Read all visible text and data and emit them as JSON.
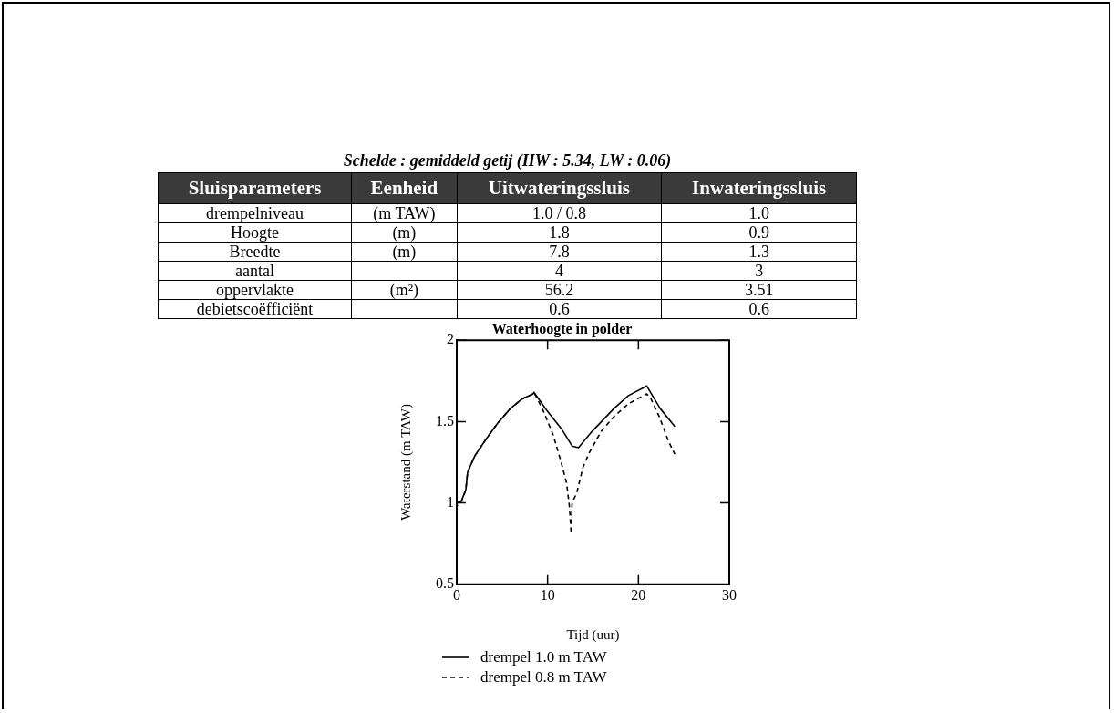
{
  "chart_data": [
    {
      "type": "other",
      "title": "Schelde : gemiddeld getij (HW : 5.34, LW : 0.06)",
      "categories": [
        "Sluisparameters",
        "Eenheid",
        "Uitwateringssluis",
        "Inwateringssluis"
      ],
      "cell_labels": [
        [
          "drempelniveau",
          "(m TAW)",
          "1.0 / 0.8",
          "1.0"
        ],
        [
          "Hoogte",
          "(m)",
          "1.8",
          "0.9"
        ],
        [
          "Breedte",
          "(m)",
          "7.8",
          "1.3"
        ],
        [
          "aantal",
          null,
          "4",
          "3"
        ],
        [
          "oppervlakte",
          "(m²)",
          "56.2",
          "3.51"
        ],
        [
          "debietscoëfficiënt",
          null,
          "0.6",
          "0.6"
        ]
      ]
    },
    {
      "type": "line",
      "title": "Waterhoogte in polder",
      "xlabel": "Tijd (uur)",
      "ylabel": "Waterstand (m TAW)",
      "xlim": [
        0,
        30
      ],
      "xticks": [
        0,
        10,
        20,
        30
      ],
      "ylim": [
        0.5,
        2
      ],
      "yticks": [
        0.5,
        1,
        1.5,
        2
      ],
      "grid": false,
      "legend": "bottom",
      "marker": "none",
      "series": [
        {
          "name": "drempel 1.0 m TAW",
          "color": "#000000",
          "line_style": "solid",
          "x": [
            0,
            0.5,
            1.0,
            1.2,
            2.0,
            3.2,
            4.5,
            5.9,
            7.2,
            8.4,
            8.5,
            9.9,
            11.6,
            12.7,
            13.4,
            14.9,
            17.3,
            18.9,
            20.6,
            20.9,
            22.4,
            24.0
          ],
          "values": [
            1.0,
            1.01,
            1.08,
            1.19,
            1.29,
            1.39,
            1.49,
            1.58,
            1.64,
            1.67,
            1.68,
            1.57,
            1.45,
            1.35,
            1.34,
            1.44,
            1.58,
            1.66,
            1.71,
            1.72,
            1.58,
            1.47
          ]
        },
        {
          "name": "drempel 0.8 m TAW",
          "color": "#000000",
          "line_style": "dashed",
          "x": [
            0,
            0,
            0.5,
            1.0,
            1.2,
            2.0,
            3.2,
            4.5,
            5.9,
            7.2,
            8.4,
            8.5,
            9.5,
            10.6,
            11.4,
            12.1,
            12.4,
            12.6,
            12.7,
            13.2,
            13.9,
            14.6,
            15.9,
            17.3,
            18.9,
            20.9,
            21.3,
            22.3,
            23.3,
            24.0
          ],
          "values": [
            0.81,
            0.98,
            1.01,
            1.08,
            1.19,
            1.29,
            1.39,
            1.49,
            1.58,
            1.64,
            1.67,
            1.68,
            1.57,
            1.42,
            1.27,
            1.12,
            0.98,
            0.81,
            1.0,
            1.06,
            1.22,
            1.31,
            1.44,
            1.53,
            1.61,
            1.67,
            1.65,
            1.53,
            1.38,
            1.3
          ]
        }
      ]
    }
  ]
}
